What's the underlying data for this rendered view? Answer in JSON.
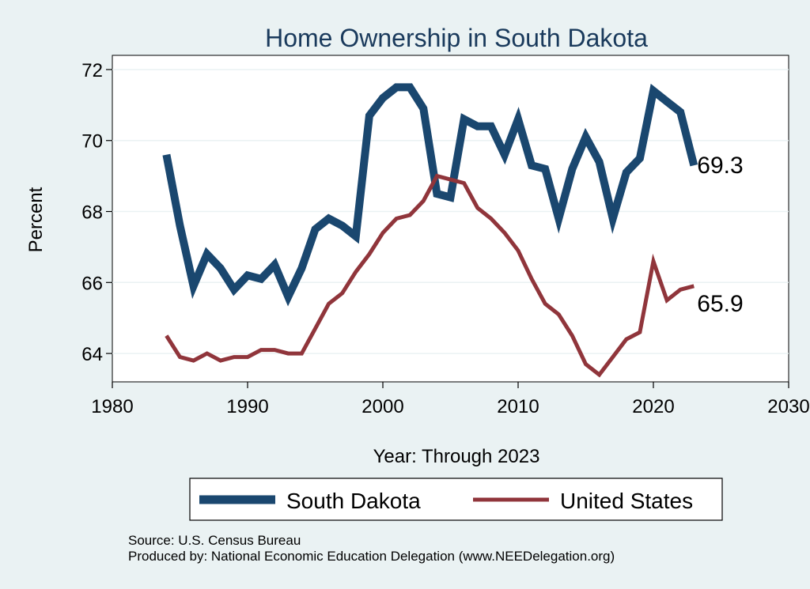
{
  "chart_data": {
    "type": "line",
    "title": "Home Ownership in South Dakota",
    "xlabel": "Year: Through 2023",
    "ylabel": "Percent",
    "xlim": [
      1980,
      2030
    ],
    "ylim": [
      63.2,
      72.4
    ],
    "xticks": [
      1980,
      1990,
      2000,
      2010,
      2020,
      2030
    ],
    "yticks": [
      64,
      66,
      68,
      70,
      72
    ],
    "grid": true,
    "legend_position": "bottom",
    "x": [
      1984,
      1985,
      1986,
      1987,
      1988,
      1989,
      1990,
      1991,
      1992,
      1993,
      1994,
      1995,
      1996,
      1997,
      1998,
      1999,
      2000,
      2001,
      2002,
      2003,
      2004,
      2005,
      2006,
      2007,
      2008,
      2009,
      2010,
      2011,
      2012,
      2013,
      2014,
      2015,
      2016,
      2017,
      2018,
      2019,
      2020,
      2021,
      2022,
      2023
    ],
    "series": [
      {
        "name": "South Dakota",
        "color": "#1a476f",
        "end_label": "69.3",
        "values": [
          69.6,
          67.6,
          65.9,
          66.8,
          66.4,
          65.8,
          66.2,
          66.1,
          66.5,
          65.6,
          66.4,
          67.5,
          67.8,
          67.6,
          67.3,
          70.7,
          71.2,
          71.5,
          71.5,
          70.9,
          68.5,
          68.4,
          70.6,
          70.4,
          70.4,
          69.6,
          70.6,
          69.3,
          69.2,
          67.8,
          69.2,
          70.1,
          69.4,
          67.8,
          69.1,
          69.5,
          71.4,
          71.1,
          70.8,
          69.3
        ]
      },
      {
        "name": "United States",
        "color": "#90353b",
        "end_label": "65.9",
        "values": [
          64.5,
          63.9,
          63.8,
          64.0,
          63.8,
          63.9,
          63.9,
          64.1,
          64.1,
          64.0,
          64.0,
          64.7,
          65.4,
          65.7,
          66.3,
          66.8,
          67.4,
          67.8,
          67.9,
          68.3,
          69.0,
          68.9,
          68.8,
          68.1,
          67.8,
          67.4,
          66.9,
          66.1,
          65.4,
          65.1,
          64.5,
          63.7,
          63.4,
          63.9,
          64.4,
          64.6,
          66.6,
          65.5,
          65.8,
          65.9
        ]
      }
    ],
    "notes": [
      "Source: U.S. Census Bureau",
      "Produced by: National Economic Education Delegation (www.NEEDelegation.org)"
    ]
  }
}
